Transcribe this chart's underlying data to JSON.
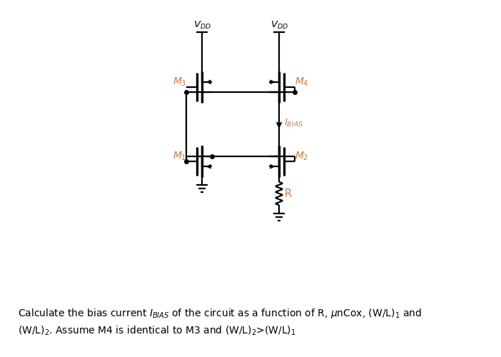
{
  "fig_width": 7.02,
  "fig_height": 5.0,
  "dpi": 100,
  "background_color": "#ffffff",
  "line_color": "#000000",
  "orange_color": "#c87941",
  "line_width": 1.6,
  "m3x": 3.3,
  "m3y": 7.2,
  "m4x": 6.0,
  "m4y": 7.2,
  "m1x": 3.3,
  "m1y": 4.6,
  "m2x": 6.0,
  "m2y": 4.6,
  "vdd_y": 9.0,
  "xlim": [
    0,
    10
  ],
  "ylim": [
    0,
    10
  ]
}
